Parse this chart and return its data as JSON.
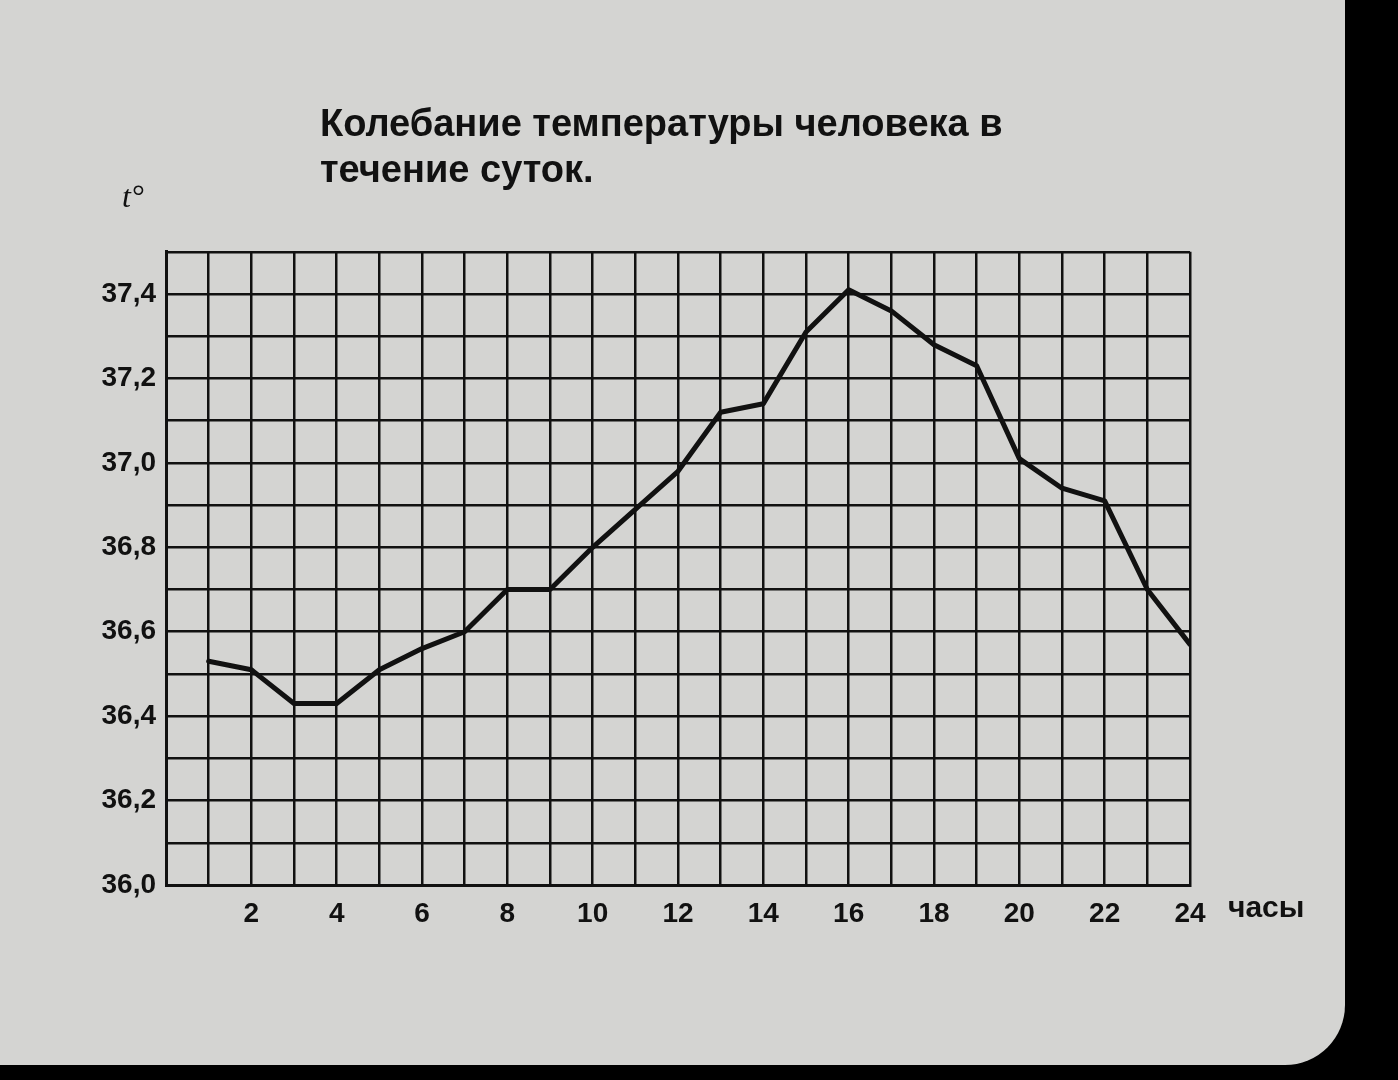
{
  "chart_data": {
    "type": "line",
    "title": "Колебание температуры человека в течение суток.",
    "xlabel": "часы",
    "ylabel": "t°",
    "x": [
      1,
      2,
      3,
      4,
      5,
      6,
      7,
      8,
      9,
      10,
      11,
      12,
      13,
      14,
      15,
      16,
      17,
      18,
      19,
      20,
      21,
      22,
      23,
      24
    ],
    "series": [
      {
        "color": "#111111",
        "values": [
          36.53,
          36.51,
          36.43,
          36.43,
          36.51,
          36.56,
          36.6,
          36.7,
          36.7,
          36.8,
          36.89,
          36.98,
          37.12,
          37.14,
          37.31,
          37.41,
          37.36,
          37.28,
          37.23,
          37.01,
          36.94,
          36.91,
          36.7,
          36.57
        ]
      }
    ],
    "xlim": [
      0,
      24
    ],
    "xticks": [
      {
        "value": 0,
        "label": null
      },
      {
        "value": 1,
        "label": null
      },
      2,
      {
        "value": 3,
        "label": null
      },
      4,
      {
        "value": 5,
        "label": null
      },
      6,
      {
        "value": 7,
        "label": null
      },
      8,
      {
        "value": 9,
        "label": null
      },
      10,
      {
        "value": 11,
        "label": null
      },
      12,
      {
        "value": 13,
        "label": null
      },
      14,
      {
        "value": 15,
        "label": null
      },
      16,
      {
        "value": 17,
        "label": null
      },
      18,
      {
        "value": 19,
        "label": null
      },
      20,
      {
        "value": 21,
        "label": null
      },
      22,
      {
        "value": 23,
        "label": null
      },
      24
    ],
    "ylim": [
      36.0,
      37.5
    ],
    "yticks": [
      {
        "value": 36.0,
        "label": "36,0"
      },
      {
        "value": 36.1,
        "label": null
      },
      {
        "value": 36.2,
        "label": "36,2"
      },
      {
        "value": 36.3,
        "label": null
      },
      {
        "value": 36.4,
        "label": "36,4"
      },
      {
        "value": 36.5,
        "label": null
      },
      {
        "value": 36.6,
        "label": "36,6"
      },
      {
        "value": 36.7,
        "label": null
      },
      {
        "value": 36.8,
        "label": "36,8"
      },
      {
        "value": 36.9,
        "label": null
      },
      {
        "value": 37.0,
        "label": "37,0"
      },
      {
        "value": 37.1,
        "label": null
      },
      {
        "value": 37.2,
        "label": "37,2"
      },
      {
        "value": 37.3,
        "label": null
      },
      {
        "value": 37.4,
        "label": "37,4"
      },
      {
        "value": 37.5,
        "label": null
      }
    ],
    "grid": true,
    "legend": false,
    "marker": "none",
    "line_style": "solid"
  }
}
